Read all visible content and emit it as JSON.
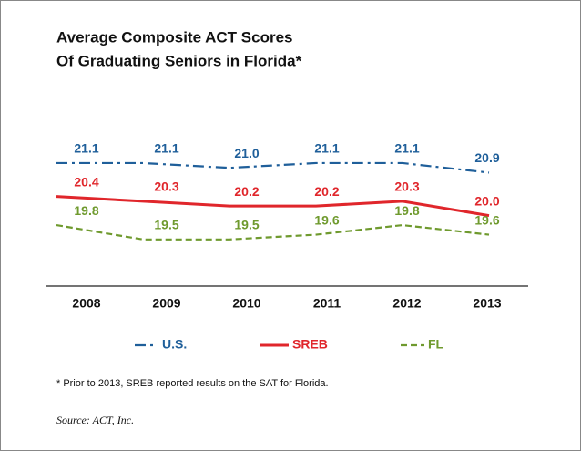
{
  "chart_data": {
    "type": "line",
    "title": [
      "Average Composite ACT Scores",
      "Of Graduating Seniors in Florida*"
    ],
    "categories": [
      "2008",
      "2009",
      "2010",
      "2011",
      "2012",
      "2013"
    ],
    "series": [
      {
        "name": "U.S.",
        "color": "#1f5f9a",
        "dash": "dashdot",
        "values": [
          21.1,
          21.1,
          21.0,
          21.1,
          21.1,
          20.9
        ],
        "value_labels": [
          "21.1",
          "21.1",
          "21.0",
          "21.1",
          "21.1",
          "20.9"
        ]
      },
      {
        "name": "SREB",
        "color": "#e0262b",
        "dash": "solid",
        "values": [
          20.4,
          20.3,
          20.2,
          20.2,
          20.3,
          20.0
        ],
        "value_labels": [
          "20.4",
          "20.3",
          "20.2",
          "20.2",
          "20.3",
          "20.0"
        ]
      },
      {
        "name": "FL",
        "color": "#6f9a2e",
        "dash": "dashed",
        "values": [
          19.8,
          19.5,
          19.5,
          19.6,
          19.8,
          19.6
        ],
        "value_labels": [
          "19.8",
          "19.5",
          "19.5",
          "19.6",
          "19.8",
          "19.6"
        ]
      }
    ],
    "ylim": [
      19,
      21.5
    ],
    "legend": "bottom",
    "footnote": "* Prior to 2013, SREB reported results on the SAT for Florida.",
    "source": "Source: ACT, Inc."
  }
}
